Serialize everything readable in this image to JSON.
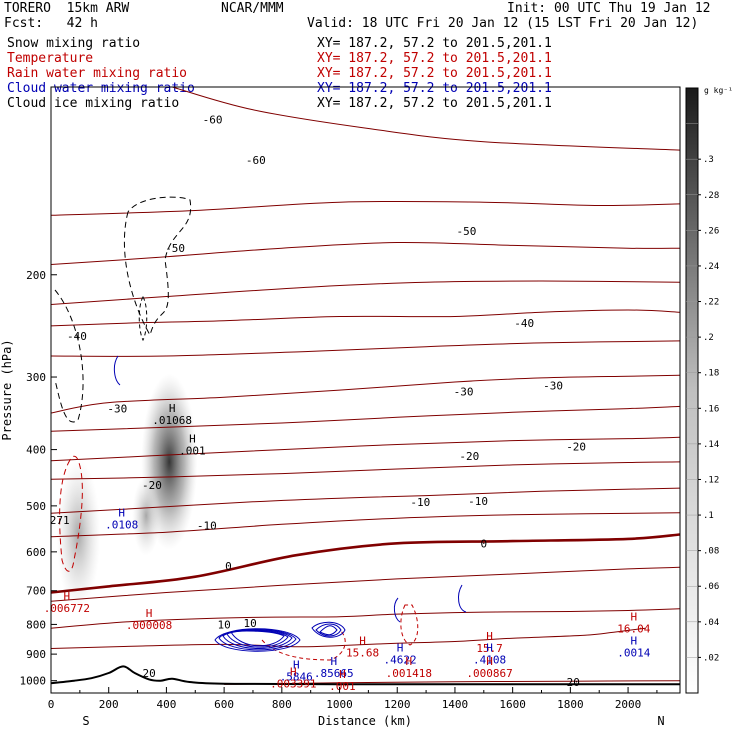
{
  "header": {
    "model": "TORERO  15km ARW",
    "center": "NCAR/MMM",
    "init": "Init: 00 UTC Thu 19 Jan 12",
    "fcst": "Fcst:   42 h",
    "valid": "Valid: 18 UTC Fri 20 Jan 12 (15 LST Fri 20 Jan 12)"
  },
  "fields": [
    {
      "name": "Snow mixing ratio",
      "xy": "XY= 187.2, 57.2 to 201.5,201.1",
      "color": "#000000"
    },
    {
      "name": "Temperature",
      "xy": "XY= 187.2, 57.2 to 201.5,201.1",
      "color": "#c00000"
    },
    {
      "name": "Rain water mixing ratio",
      "xy": "XY= 187.2, 57.2 to 201.5,201.1",
      "color": "#c00000"
    },
    {
      "name": "Cloud water mixing ratio",
      "xy": "XY= 187.2, 57.2 to 201.5,201.1",
      "color": "#0000b4"
    },
    {
      "name": "Cloud ice mixing ratio",
      "xy": "XY= 187.2, 57.2 to 201.5,201.1",
      "color": "#000000"
    }
  ],
  "chart_data": {
    "type": "cross-section",
    "xlabel": "Distance (km)",
    "ylabel": "Pressure (hPa)",
    "xlim": [
      0,
      2180
    ],
    "ylim": [
      1050,
      95
    ],
    "y_scale": "log",
    "x_ticks": [
      0,
      200,
      400,
      600,
      800,
      1000,
      1200,
      1400,
      1600,
      1800,
      2000
    ],
    "y_ticks": [
      200,
      300,
      400,
      500,
      600,
      700,
      800,
      900,
      1000
    ],
    "x_ends": {
      "left": "S",
      "right": "N"
    },
    "colorbar": {
      "unit": "g kg⁻¹",
      "ticks": [
        ".02",
        ".04",
        ".06",
        ".08",
        ".1",
        ".12",
        ".14",
        ".16",
        ".18",
        ".2",
        ".22",
        ".24",
        ".26",
        ".28",
        ".3"
      ],
      "range": [
        0,
        0.34
      ]
    },
    "temperature_contours": [
      {
        "level": -60,
        "pts": [
          [
            420,
            95
          ],
          [
            700,
            104
          ],
          [
            1100,
            112
          ],
          [
            1500,
            118
          ],
          [
            2180,
            122
          ]
        ],
        "labels": [
          [
            560,
            108,
            "-60"
          ],
          [
            710,
            127,
            "-60"
          ]
        ]
      },
      {
        "level": -55,
        "pts": [
          [
            0,
            158
          ],
          [
            500,
            155
          ],
          [
            1000,
            150
          ],
          [
            1500,
            150
          ],
          [
            1900,
            152
          ],
          [
            2180,
            151
          ]
        ]
      },
      {
        "level": -50,
        "pts": [
          [
            0,
            192
          ],
          [
            350,
            187
          ],
          [
            800,
            180
          ],
          [
            1200,
            176
          ],
          [
            1600,
            178
          ],
          [
            2000,
            180
          ],
          [
            2180,
            180
          ]
        ],
        "labels": [
          [
            430,
            180,
            "-50"
          ],
          [
            1440,
            168,
            "-50"
          ]
        ]
      },
      {
        "level": -45,
        "pts": [
          [
            0,
            225
          ],
          [
            400,
            218
          ],
          [
            900,
            210
          ],
          [
            1300,
            206
          ],
          [
            1700,
            205
          ],
          [
            2180,
            206
          ]
        ]
      },
      {
        "level": -40,
        "pts": [
          [
            0,
            245
          ],
          [
            300,
            242
          ],
          [
            600,
            240
          ],
          [
            1000,
            236
          ],
          [
            1400,
            236
          ],
          [
            1700,
            232
          ],
          [
            2000,
            230
          ],
          [
            2180,
            232
          ]
        ],
        "labels": [
          [
            90,
            255,
            "-40"
          ],
          [
            1640,
            242,
            "-40"
          ]
        ]
      },
      {
        "level": -35,
        "pts": [
          [
            0,
            276
          ],
          [
            400,
            276
          ],
          [
            900,
            271
          ],
          [
            1300,
            266
          ],
          [
            1700,
            262
          ],
          [
            2180,
            260
          ]
        ]
      },
      {
        "level": -30,
        "pts": [
          [
            0,
            346
          ],
          [
            200,
            332
          ],
          [
            600,
            325
          ],
          [
            1000,
            316
          ],
          [
            1400,
            306
          ],
          [
            1700,
            301
          ],
          [
            2000,
            299
          ],
          [
            2180,
            298
          ]
        ],
        "labels": [
          [
            230,
            340,
            "-30"
          ],
          [
            1430,
            318,
            "-30"
          ],
          [
            1740,
            310,
            "-30"
          ]
        ]
      },
      {
        "level": -25,
        "pts": [
          [
            0,
            372
          ],
          [
            400,
            366
          ],
          [
            800,
            360
          ],
          [
            1200,
            352
          ],
          [
            1600,
            345
          ],
          [
            2000,
            340
          ],
          [
            2180,
            337
          ]
        ]
      },
      {
        "level": -20,
        "pts": [
          [
            0,
            418
          ],
          [
            350,
            410
          ],
          [
            800,
            400
          ],
          [
            1200,
            392
          ],
          [
            1600,
            386
          ],
          [
            2000,
            383
          ],
          [
            2180,
            381
          ]
        ],
        "labels": [
          [
            350,
            460,
            "-20"
          ],
          [
            1450,
            410,
            "-20"
          ],
          [
            1820,
            395,
            "-20"
          ]
        ]
      },
      {
        "level": -15,
        "pts": [
          [
            0,
            450
          ],
          [
            400,
            446
          ],
          [
            800,
            440
          ],
          [
            1200,
            432
          ],
          [
            1600,
            425
          ],
          [
            2000,
            421
          ],
          [
            2180,
            420
          ]
        ]
      },
      {
        "level": -10,
        "pts": [
          [
            0,
            515
          ],
          [
            300,
            505
          ],
          [
            700,
            492
          ],
          [
            1000,
            485
          ],
          [
            1300,
            480
          ],
          [
            1700,
            472
          ],
          [
            2180,
            466
          ]
        ],
        "labels": [
          [
            540,
            540,
            "-10"
          ],
          [
            1280,
            492,
            "-10"
          ],
          [
            1480,
            490,
            "-10"
          ]
        ]
      },
      {
        "level": -5,
        "pts": [
          [
            0,
            565
          ],
          [
            400,
            555
          ],
          [
            800,
            538
          ],
          [
            1200,
            525
          ],
          [
            1600,
            518
          ],
          [
            2180,
            514
          ]
        ]
      },
      {
        "level": 0,
        "pts": [
          [
            0,
            705
          ],
          [
            200,
            688
          ],
          [
            500,
            662
          ],
          [
            850,
            608
          ],
          [
            1200,
            580
          ],
          [
            1600,
            575
          ],
          [
            2000,
            570
          ],
          [
            2180,
            560
          ]
        ],
        "labels": [
          [
            615,
            635,
            "0"
          ],
          [
            1500,
            580,
            "0"
          ]
        ]
      },
      {
        "level": 5,
        "pts": [
          [
            0,
            730
          ],
          [
            400,
            705
          ],
          [
            800,
            685
          ],
          [
            1200,
            668
          ],
          [
            1600,
            655
          ],
          [
            2000,
            642
          ],
          [
            2180,
            638
          ]
        ]
      },
      {
        "level": 10,
        "pts": [
          [
            0,
            812
          ],
          [
            300,
            790
          ],
          [
            700,
            778
          ],
          [
            1000,
            776
          ],
          [
            1200,
            768
          ],
          [
            1500,
            762
          ],
          [
            1800,
            760
          ],
          [
            2000,
            757
          ],
          [
            2180,
            752
          ]
        ],
        "labels": [
          [
            600,
            800,
            "10"
          ],
          [
            690,
            795,
            "10"
          ]
        ]
      },
      {
        "level": 15,
        "pts": [
          [
            0,
            880
          ],
          [
            300,
            872
          ],
          [
            600,
            866
          ],
          [
            850,
            874
          ],
          [
            1000,
            870
          ],
          [
            1200,
            862
          ],
          [
            1400,
            856
          ],
          [
            1600,
            845
          ],
          [
            1850,
            835
          ],
          [
            1950,
            825
          ],
          [
            2060,
            812
          ]
        ]
      },
      {
        "level": 20,
        "pts": [
          [
            600,
            1015
          ],
          [
            1000,
            1008
          ],
          [
            1400,
            1004
          ],
          [
            1800,
            1002
          ],
          [
            2180,
            1000
          ]
        ],
        "labels": [
          [
            340,
            970,
            "20"
          ],
          [
            1810,
            1005,
            "20"
          ]
        ]
      }
    ],
    "terrain": [
      [
        0,
        1010
      ],
      [
        80,
        1000
      ],
      [
        140,
        990
      ],
      [
        200,
        970
      ],
      [
        250,
        945
      ],
      [
        290,
        970
      ],
      [
        340,
        995
      ],
      [
        380,
        1000
      ],
      [
        420,
        992
      ],
      [
        480,
        1005
      ],
      [
        600,
        1012
      ],
      [
        1000,
        1014
      ],
      [
        2180,
        1014
      ]
    ],
    "maxima": [
      {
        "label": "H",
        "value": ".01068",
        "x": 420,
        "p": 350,
        "color": "#000000"
      },
      {
        "label": "H",
        "value": ".001",
        "x": 490,
        "p": 395,
        "color": "#000000"
      },
      {
        "label": "",
        "value": "271",
        "x": 30,
        "p": 520,
        "color": "#000000"
      },
      {
        "label": "H",
        "value": ".0108",
        "x": 245,
        "p": 530,
        "color": "#0000b4"
      },
      {
        "label": "H",
        "value": ".006772",
        "x": 55,
        "p": 738,
        "color": "#c00000"
      },
      {
        "label": "H",
        "value": ".000008",
        "x": 340,
        "p": 790,
        "color": "#c00000"
      },
      {
        "label": "H",
        "value": "16.04",
        "x": 2020,
        "p": 800,
        "color": "#c00000"
      },
      {
        "label": "H",
        "value": "15.68",
        "x": 1080,
        "p": 880,
        "color": "#c00000"
      },
      {
        "label": "H",
        "value": "15.7",
        "x": 1520,
        "p": 865,
        "color": "#c00000"
      },
      {
        "label": "H",
        "value": ".0014",
        "x": 2020,
        "p": 880,
        "color": "#0000b4"
      },
      {
        "label": "H",
        "value": ".4622",
        "x": 1210,
        "p": 905,
        "color": "#0000b4"
      },
      {
        "label": "H",
        "value": ".4108",
        "x": 1520,
        "p": 905,
        "color": "#0000b4"
      },
      {
        "label": "H",
        "value": ".85665",
        "x": 980,
        "p": 955,
        "color": "#0000b4"
      },
      {
        "label": "H",
        "value": ".5846",
        "x": 850,
        "p": 968,
        "color": "#0000b4"
      },
      {
        "label": "H",
        "value": ".001418",
        "x": 1240,
        "p": 955,
        "color": "#c00000"
      },
      {
        "label": "H",
        "value": ".000867",
        "x": 1520,
        "p": 955,
        "color": "#c00000"
      },
      {
        "label": "H",
        "value": ".003391",
        "x": 840,
        "p": 995,
        "color": "#c00000"
      },
      {
        "label": "H",
        "value": ".001",
        "x": 1010,
        "p": 1005,
        "color": "#c00000"
      }
    ]
  }
}
